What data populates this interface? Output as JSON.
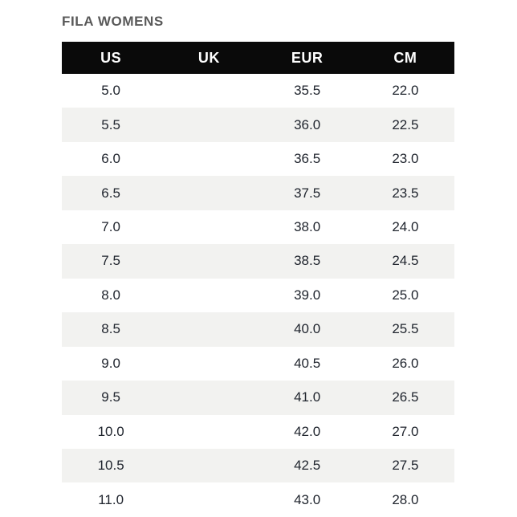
{
  "header": {
    "title": "FILA WOMENS"
  },
  "chart_data": {
    "type": "table",
    "title": "FILA WOMENS",
    "columns": [
      "US",
      "UK",
      "EUR",
      "CM"
    ],
    "rows": [
      [
        "5.0",
        "",
        "35.5",
        "22.0"
      ],
      [
        "5.5",
        "",
        "36.0",
        "22.5"
      ],
      [
        "6.0",
        "",
        "36.5",
        "23.0"
      ],
      [
        "6.5",
        "",
        "37.5",
        "23.5"
      ],
      [
        "7.0",
        "",
        "38.0",
        "24.0"
      ],
      [
        "7.5",
        "",
        "38.5",
        "24.5"
      ],
      [
        "8.0",
        "",
        "39.0",
        "25.0"
      ],
      [
        "8.5",
        "",
        "40.0",
        "25.5"
      ],
      [
        "9.0",
        "",
        "40.5",
        "26.0"
      ],
      [
        "9.5",
        "",
        "41.0",
        "26.5"
      ],
      [
        "10.0",
        "",
        "42.0",
        "27.0"
      ],
      [
        "10.5",
        "",
        "42.5",
        "27.5"
      ],
      [
        "11.0",
        "",
        "43.0",
        "28.0"
      ]
    ],
    "layout": {
      "striped": true,
      "stripe_pattern": "odd-rows-gray",
      "uk_column_empty": true
    }
  },
  "colors": {
    "page_background": "#ffffff",
    "title_text": "#595959",
    "header_background": "#0a0a0a",
    "header_text": "#ffffff",
    "row_stripe": "#f2f2f0",
    "cell_text": "#20252e"
  }
}
